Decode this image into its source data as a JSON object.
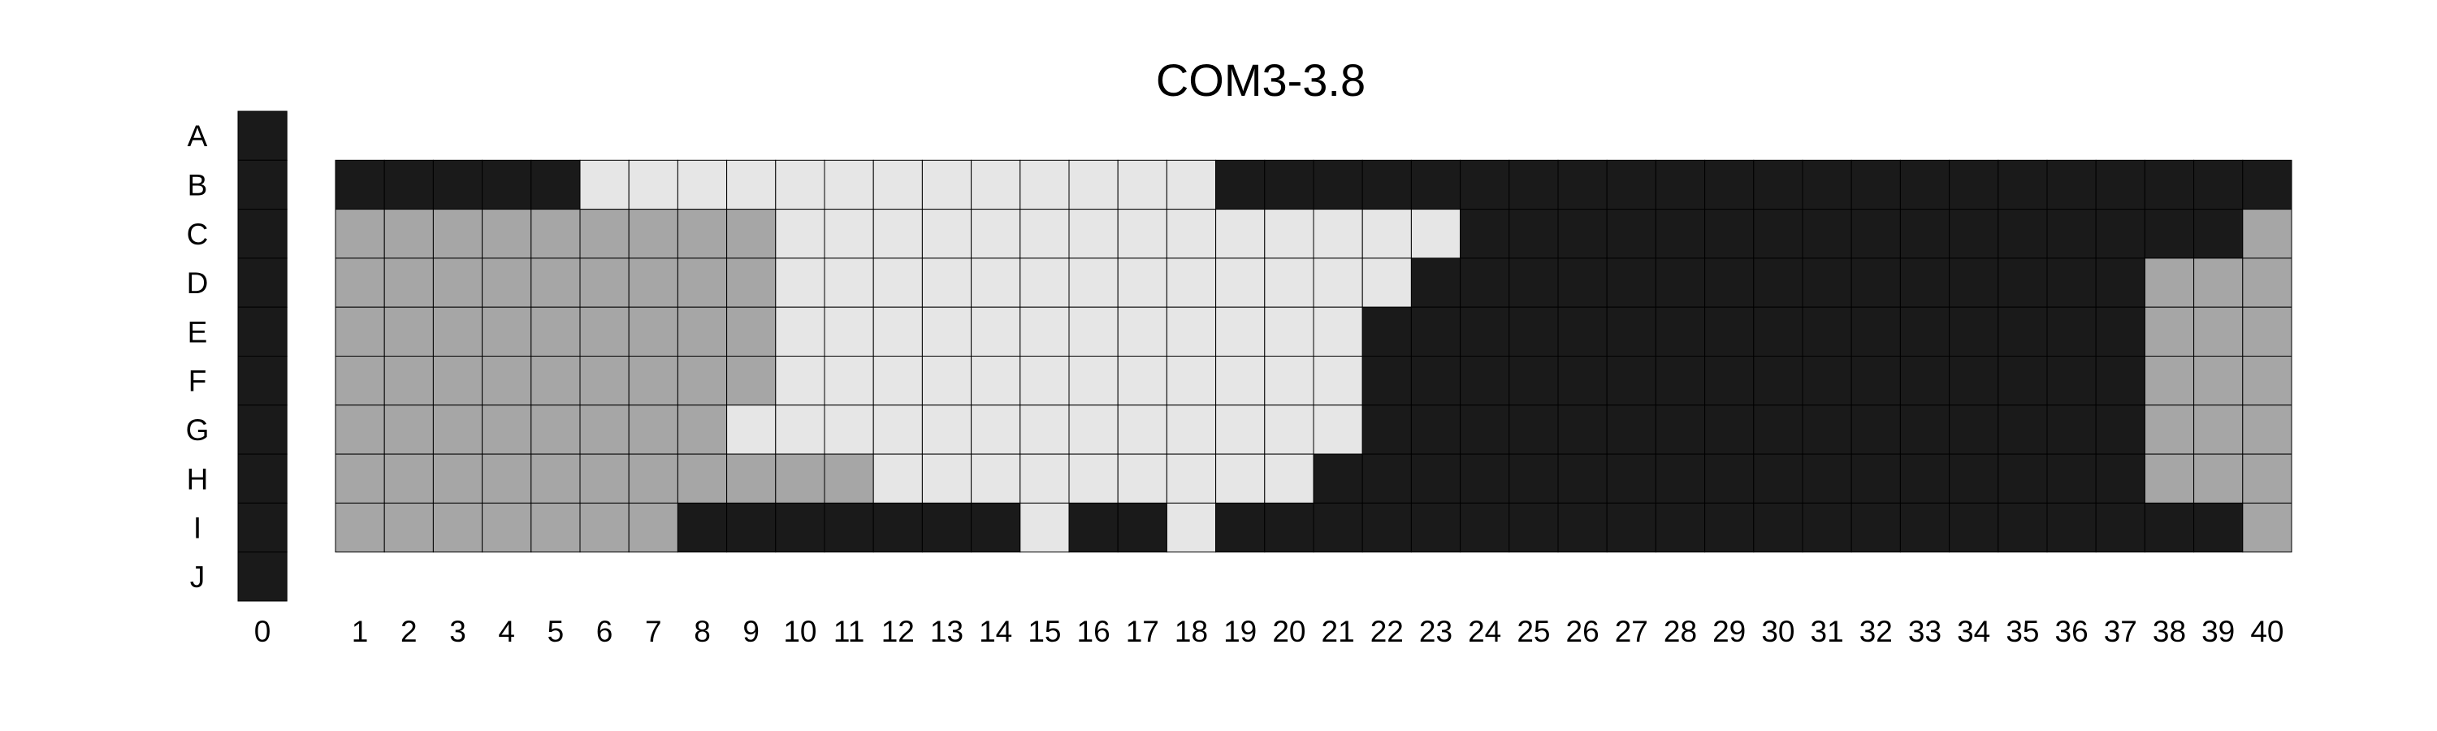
{
  "chart_data": {
    "type": "heatmap",
    "title": "COM3-3.8",
    "rows": [
      "A",
      "B",
      "C",
      "D",
      "E",
      "F",
      "G",
      "H",
      "I",
      "J"
    ],
    "columns": [
      "0",
      "1",
      "2",
      "3",
      "4",
      "5",
      "6",
      "7",
      "8",
      "9",
      "10",
      "11",
      "12",
      "13",
      "14",
      "15",
      "16",
      "17",
      "18",
      "19",
      "20",
      "21",
      "22",
      "23",
      "24",
      "25",
      "26",
      "27",
      "28",
      "29",
      "30",
      "31",
      "32",
      "33",
      "34",
      "35",
      "36",
      "37",
      "38",
      "39",
      "40"
    ],
    "legend": "none",
    "grid": true,
    "palette": {
      "K": "#1a1a1a",
      "L": "#e6e6e6",
      "M": "#a6a6a6"
    },
    "cells": [
      "K........................................",
      "KKKKKKLLLLLLLLLLLLLKKKKKKKKKKKKKKKKKKKKKK",
      "KMMMMMMMMMLLLLLLLLLLLLLLKKKKKKKKKKKKKKKKM",
      "KMMMMMMMMMLLLLLLLLLLLLLKKKKKKKKKKKKKKKMMM",
      "KMMMMMMMMMLLLLLLLLLLLLKKKKKKKKKKKKKKKKMMM",
      "KMMMMMMMMMLLLLLLLLLLLLKKKKKKKKKKKKKKKKMMM",
      "KMMMMMMMMLLLLLLLLLLLLLKKKKKKKKKKKKKKKKMMM",
      "KMMMMMMMMMMMLLLLLLLLLKKKKKKKKKKKKKKKKKMMM",
      "KMMMMMMMKKKKKKKLKKLKKKKKKKKKKKKKKKKKKKKKM",
      "K........................................"
    ]
  }
}
